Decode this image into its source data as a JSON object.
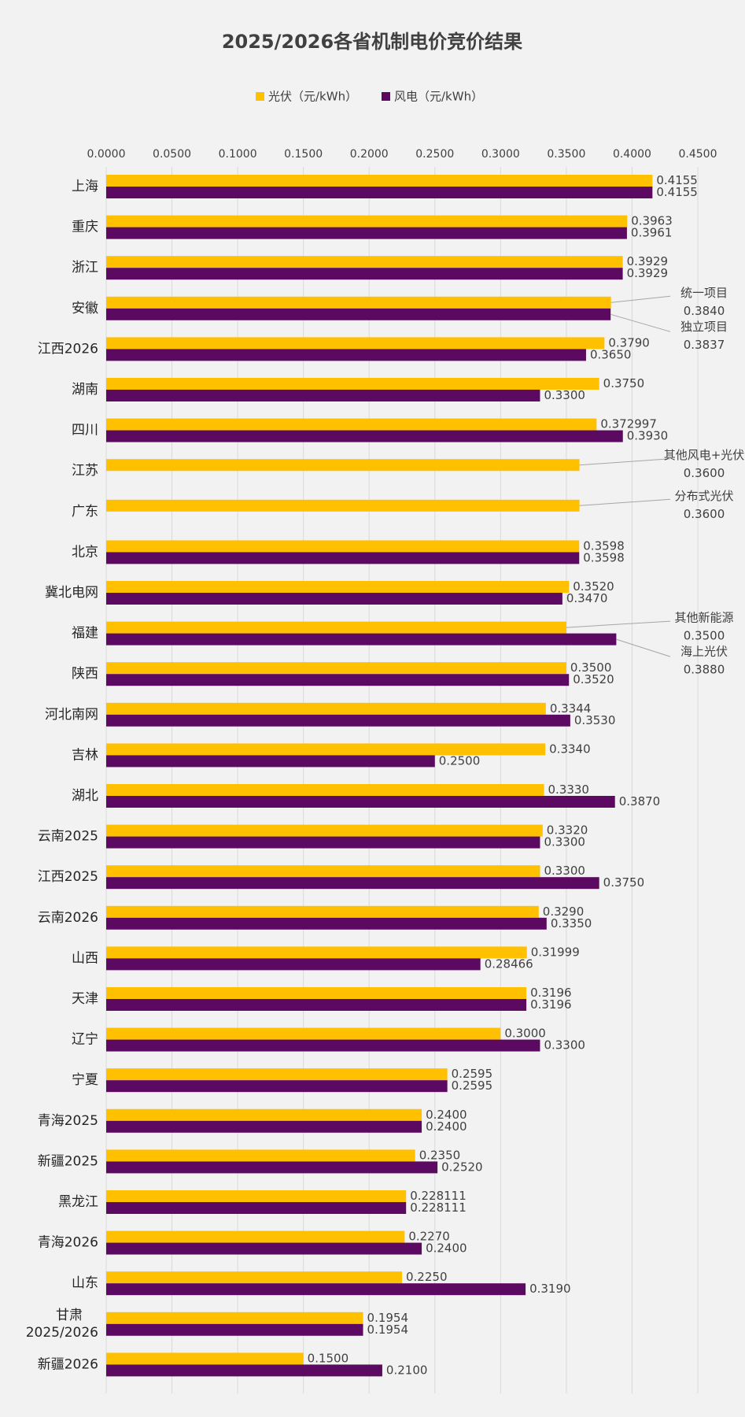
{
  "chart_data": {
    "type": "hbar",
    "title": "2025/2026各省机制电价竞价结果",
    "categories": [
      "上海",
      "重庆",
      "浙江",
      "安徽",
      "江西2026",
      "湖南",
      "四川",
      "江苏",
      "广东",
      "北京",
      "冀北电网",
      "福建",
      "陕西",
      "河北南网",
      "吉林",
      "湖北",
      "云南2025",
      "江西2025",
      "云南2026",
      "山西",
      "天津",
      "辽宁",
      "宁夏",
      "青海2025",
      "新疆2025",
      "黑龙江",
      "青海2026",
      "山东",
      "甘肃\n2025/2026",
      "新疆2026"
    ],
    "series": [
      {
        "name": "光伏（元/kWh）",
        "color": "#FFC000",
        "values": [
          0.4155,
          0.3963,
          0.3929,
          0.384,
          0.379,
          0.375,
          0.372997,
          0.36,
          0.36,
          0.3598,
          0.352,
          0.35,
          0.35,
          0.3344,
          0.334,
          0.333,
          0.332,
          0.33,
          0.329,
          0.31999,
          0.3196,
          0.3,
          0.2595,
          0.24,
          0.235,
          0.228111,
          0.227,
          0.225,
          0.1954,
          0.15
        ],
        "value_labels": [
          "0.4155",
          "0.3963",
          "0.3929",
          "0.3840",
          "0.3790",
          "0.3750",
          "0.372997",
          "0.3600",
          "0.3600",
          "0.3598",
          "0.3520",
          "0.3500",
          "0.3500",
          "0.3344",
          "0.3340",
          "0.3330",
          "0.3320",
          "0.3300",
          "0.3290",
          "0.31999",
          "0.3196",
          "0.3000",
          "0.2595",
          "0.2400",
          "0.2350",
          "0.228111",
          "0.2270",
          "0.2250",
          "0.1954",
          "0.1500"
        ],
        "notes": [
          null,
          null,
          null,
          "统一项目",
          null,
          null,
          null,
          "其他风电+光伏",
          "分布式光伏",
          null,
          null,
          "其他新能源",
          null,
          null,
          null,
          null,
          null,
          null,
          null,
          null,
          null,
          null,
          null,
          null,
          null,
          null,
          null,
          null,
          null,
          null
        ]
      },
      {
        "name": "风电（元/kWh）",
        "color": "#5C0A61",
        "values": [
          0.4155,
          0.3961,
          0.3929,
          0.3837,
          0.365,
          0.33,
          0.393,
          null,
          null,
          0.3598,
          0.347,
          0.388,
          0.352,
          0.353,
          0.25,
          0.387,
          0.33,
          0.375,
          0.335,
          0.28466,
          0.3196,
          0.33,
          0.2595,
          0.24,
          0.252,
          0.228111,
          0.24,
          0.319,
          0.1954,
          0.21
        ],
        "value_labels": [
          "0.4155",
          "0.3961",
          "0.3929",
          "0.3837",
          "0.3650",
          "0.3300",
          "0.3930",
          null,
          null,
          "0.3598",
          "0.3470",
          "0.3880",
          "0.3520",
          "0.3530",
          "0.2500",
          "0.3870",
          "0.3300",
          "0.3750",
          "0.3350",
          "0.28466",
          "0.3196",
          "0.3300",
          "0.2595",
          "0.2400",
          "0.2520",
          "0.228111",
          "0.2400",
          "0.3190",
          "0.1954",
          "0.2100"
        ],
        "notes": [
          null,
          null,
          null,
          "独立项目",
          null,
          null,
          null,
          null,
          null,
          null,
          null,
          "海上光伏",
          null,
          null,
          null,
          null,
          null,
          null,
          null,
          null,
          null,
          null,
          null,
          null,
          null,
          null,
          null,
          null,
          null,
          null
        ]
      }
    ],
    "xlim": [
      0,
      0.45
    ],
    "xticks": [
      {
        "value": 0,
        "label": "0.0000"
      },
      {
        "value": 0.05,
        "label": "0.0500"
      },
      {
        "value": 0.1,
        "label": "0.1000"
      },
      {
        "value": 0.15,
        "label": "0.1500"
      },
      {
        "value": 0.2,
        "label": "0.2000"
      },
      {
        "value": 0.25,
        "label": "0.2500"
      },
      {
        "value": 0.3,
        "label": "0.3000"
      },
      {
        "value": 0.35,
        "label": "0.3500"
      },
      {
        "value": 0.4,
        "label": "0.4000"
      },
      {
        "value": 0.45,
        "label": "0.4500"
      }
    ],
    "grid": true,
    "legend": "top"
  }
}
